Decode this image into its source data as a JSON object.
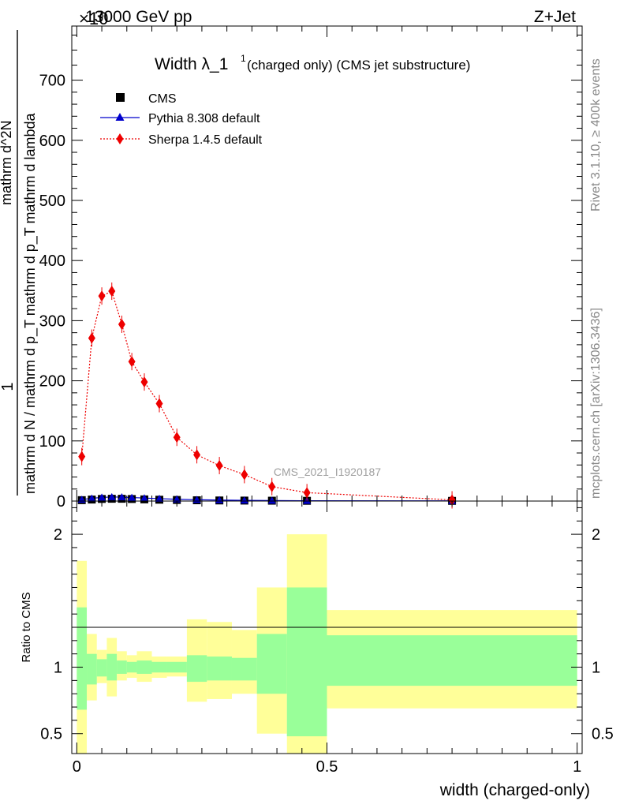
{
  "header": {
    "energy": "13000 GeV pp",
    "process": "Z+Jet",
    "exponent": "×10",
    "exponent_power": "3"
  },
  "side_labels": {
    "rivet": "Rivet 3.1.10, ≥ 400k events",
    "mcplots": "mcplots.cern.ch [arXiv:1306.3436]"
  },
  "colors": {
    "cms": "#000000",
    "pythia": "#0000cc",
    "sherpa": "#ee0000",
    "band_outer": "#ffff99",
    "band_inner": "#99ff99",
    "watermark": "#a0a0a0"
  },
  "chart_data": [
    {
      "type": "scatter",
      "title": "Width λ_1",
      "title_sup": "1",
      "title_suffix": "(charged only) (CMS jet substructure)",
      "watermark": "CMS_2021_I1920187",
      "ylabel_numerator": "1",
      "ylabel_denominator": "mathrm d N / mathrm d p_T mathrm d p_T mathrm d lambda",
      "ylabel_top": "mathrm d^2N",
      "ylim": [
        0,
        790
      ],
      "xlim": [
        -0.01,
        1.01
      ],
      "yticks": [
        0,
        100,
        200,
        300,
        400,
        500,
        600,
        700
      ],
      "ytick_labels": [
        "0",
        "100",
        "200",
        "300",
        "400",
        "500",
        "600",
        "700"
      ],
      "legend": [
        {
          "name": "CMS",
          "marker": "square"
        },
        {
          "name": "Pythia 8.308 default",
          "marker": "triangle"
        },
        {
          "name": "Sherpa 1.4.5 default",
          "marker": "diamond"
        }
      ],
      "series": [
        {
          "name": "CMS",
          "x": [
            0.01,
            0.03,
            0.05,
            0.07,
            0.09,
            0.11,
            0.135,
            0.165,
            0.2,
            0.24,
            0.285,
            0.335,
            0.39,
            0.46,
            0.75
          ],
          "y": [
            1.5,
            2.5,
            3.5,
            3.8,
            3.8,
            3.4,
            2.8,
            2.2,
            1.8,
            1.3,
            1.0,
            0.8,
            0.6,
            0.4,
            0.3
          ]
        },
        {
          "name": "Pythia 8.308 default",
          "x": [
            0.01,
            0.03,
            0.05,
            0.07,
            0.09,
            0.11,
            0.135,
            0.165,
            0.2,
            0.24,
            0.285,
            0.335,
            0.39,
            0.46,
            0.75
          ],
          "y": [
            2.5,
            4.5,
            6.0,
            6.8,
            6.5,
            5.8,
            5.0,
            4.0,
            3.0,
            2.2,
            1.6,
            1.2,
            0.8,
            0.5,
            0.3
          ]
        },
        {
          "name": "Sherpa 1.4.5 default",
          "x": [
            0.01,
            0.03,
            0.05,
            0.07,
            0.09,
            0.11,
            0.135,
            0.165,
            0.2,
            0.24,
            0.285,
            0.335,
            0.39,
            0.46,
            0.75
          ],
          "y": [
            74,
            271,
            341,
            349,
            294,
            232,
            198,
            162,
            106,
            77,
            59,
            44,
            24,
            14,
            2
          ]
        }
      ]
    },
    {
      "type": "area",
      "ylabel": "Ratio to CMS",
      "xlabel": "width (charged-only)",
      "ylim": [
        0.35,
        2.25
      ],
      "xlim": [
        -0.01,
        1.01
      ],
      "yticks": [
        0.5,
        1,
        2
      ],
      "ytick_labels": [
        "0.5",
        "1",
        "2"
      ],
      "xticks": [
        0,
        0.5,
        1
      ],
      "xtick_labels": [
        "0",
        "0.5",
        "1"
      ],
      "bins": [
        {
          "lo": 0.0,
          "hi": 0.02,
          "stat_lo": 0.68,
          "stat_hi": 1.45,
          "tot_lo": 0.3,
          "tot_hi": 1.8
        },
        {
          "lo": 0.02,
          "hi": 0.04,
          "stat_lo": 0.87,
          "stat_hi": 1.1,
          "tot_lo": 0.75,
          "tot_hi": 1.25
        },
        {
          "lo": 0.04,
          "hi": 0.06,
          "stat_lo": 0.93,
          "stat_hi": 1.06,
          "tot_lo": 0.88,
          "tot_hi": 1.13
        },
        {
          "lo": 0.06,
          "hi": 0.08,
          "stat_lo": 0.9,
          "stat_hi": 1.1,
          "tot_lo": 0.78,
          "tot_hi": 1.22
        },
        {
          "lo": 0.08,
          "hi": 0.1,
          "stat_lo": 0.95,
          "stat_hi": 1.05,
          "tot_lo": 0.9,
          "tot_hi": 1.12
        },
        {
          "lo": 0.1,
          "hi": 0.12,
          "stat_lo": 0.96,
          "stat_hi": 1.04,
          "tot_lo": 0.92,
          "tot_hi": 1.09
        },
        {
          "lo": 0.12,
          "hi": 0.15,
          "stat_lo": 0.95,
          "stat_hi": 1.05,
          "tot_lo": 0.89,
          "tot_hi": 1.12
        },
        {
          "lo": 0.15,
          "hi": 0.18,
          "stat_lo": 0.96,
          "stat_hi": 1.04,
          "tot_lo": 0.92,
          "tot_hi": 1.08
        },
        {
          "lo": 0.18,
          "hi": 0.22,
          "stat_lo": 0.96,
          "stat_hi": 1.04,
          "tot_lo": 0.93,
          "tot_hi": 1.08
        },
        {
          "lo": 0.22,
          "hi": 0.26,
          "stat_lo": 0.89,
          "stat_hi": 1.09,
          "tot_lo": 0.74,
          "tot_hi": 1.36
        },
        {
          "lo": 0.26,
          "hi": 0.31,
          "stat_lo": 0.9,
          "stat_hi": 1.08,
          "tot_lo": 0.76,
          "tot_hi": 1.34
        },
        {
          "lo": 0.31,
          "hi": 0.36,
          "stat_lo": 0.9,
          "stat_hi": 1.07,
          "tot_lo": 0.8,
          "tot_hi": 1.28
        },
        {
          "lo": 0.36,
          "hi": 0.42,
          "stat_lo": 0.8,
          "stat_hi": 1.25,
          "tot_lo": 0.5,
          "tot_hi": 1.6
        },
        {
          "lo": 0.42,
          "hi": 0.5,
          "stat_lo": 0.48,
          "stat_hi": 1.6,
          "tot_lo": 0.3,
          "tot_hi": 2.0
        },
        {
          "lo": 0.5,
          "hi": 1.0,
          "stat_lo": 0.86,
          "stat_hi": 1.24,
          "tot_lo": 0.69,
          "tot_hi": 1.43
        }
      ]
    }
  ]
}
